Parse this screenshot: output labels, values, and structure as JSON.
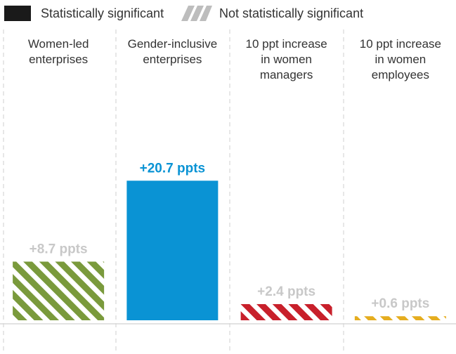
{
  "legend": {
    "significant_label": "Statistically significant",
    "not_significant_label": "Not statistically significant",
    "significant_color": "#1a1a1a",
    "not_significant_color": "#bdbdbd"
  },
  "chart_data": {
    "type": "bar",
    "title": "",
    "xlabel": "",
    "ylabel": "",
    "ylim": [
      0,
      25
    ],
    "grid": false,
    "legend_position": "top-left",
    "categories": [
      [
        "Women-led",
        "enterprises"
      ],
      [
        "Gender-inclusive",
        "enterprises"
      ],
      [
        "10 ppt increase",
        "in women",
        "managers"
      ],
      [
        "10 ppt increase",
        "in women",
        "employees"
      ]
    ],
    "values": [
      8.7,
      20.7,
      2.4,
      0.6
    ],
    "labels": [
      "+8.7 ppts",
      "+20.7 ppts",
      "+2.4 ppts",
      "+0.6 ppts"
    ],
    "significant": [
      false,
      true,
      false,
      false
    ],
    "colors": [
      "#7a9a3c",
      "#0a93d4",
      "#c8202b",
      "#e5ad1f"
    ],
    "label_colors": [
      "#c8c8c8",
      "#0a93d4",
      "#c8c8c8",
      "#c8c8c8"
    ]
  }
}
